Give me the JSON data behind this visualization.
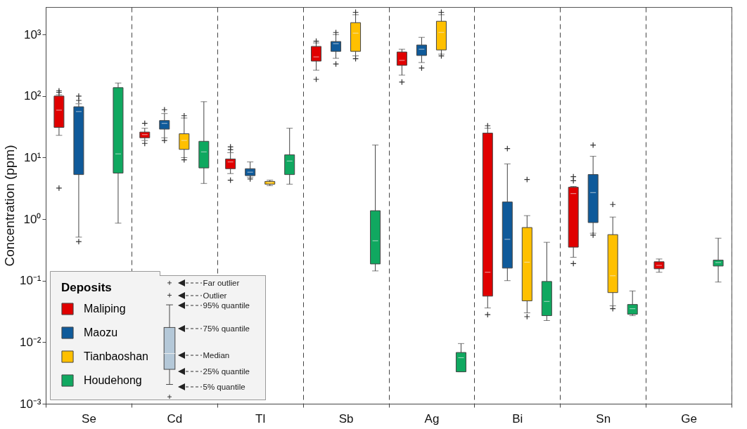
{
  "chart_data": {
    "type": "box",
    "ylabel": "Concentration (ppm)",
    "legend_title": "Deposits",
    "legend": "bottom left",
    "grid": "x",
    "log": true,
    "categories": [
      "Se",
      "Cd",
      "Tl",
      "Sb",
      "Ag",
      "Bi",
      "Sn",
      "Ge"
    ],
    "ylim": [
      0.001,
      2800
    ],
    "yticks": [
      {
        "value": 0.001,
        "label": "10⁻³"
      },
      {
        "value": 0.01,
        "label": "10⁻²"
      },
      {
        "value": 0.1,
        "label": "10⁻¹"
      },
      {
        "value": 1,
        "label": "10⁰"
      },
      {
        "value": 10,
        "label": "10¹"
      },
      {
        "value": 100,
        "label": "10²"
      },
      {
        "value": 1000,
        "label": "10³"
      }
    ],
    "annotations": [
      "Far  outlier",
      "Outlier",
      "95% quantile",
      "75% quantile",
      "Median",
      "25% quantile",
      "5% quantile"
    ],
    "series": [
      {
        "name": "Maliping",
        "color": "#e00000",
        "boxes": [
          {
            "low": 23,
            "q1": 31,
            "median": 59,
            "q3": 100,
            "high": 105,
            "outliers": [
              115,
              122,
              3.2
            ]
          },
          {
            "low": 19,
            "q1": 21,
            "median": 23.6,
            "q3": 26,
            "high": 30,
            "outliers": [
              36,
              17
            ]
          },
          {
            "low": 5.5,
            "q1": 6.6,
            "median": 8.5,
            "q3": 9.5,
            "high": 12,
            "outliers": [
              13.5,
              15,
              4.3
            ]
          },
          {
            "low": 263,
            "q1": 370,
            "median": 433,
            "q3": 641,
            "high": 731,
            "outliers": [
              780,
              187
            ]
          },
          {
            "low": 219,
            "q1": 316,
            "median": 380,
            "q3": 520,
            "high": 577,
            "outliers": [
              169
            ]
          },
          {
            "low": 0.036,
            "q1": 0.056,
            "median": 0.137,
            "q3": 25,
            "high": 30,
            "outliers": [
              33,
              0.028
            ]
          },
          {
            "low": 0.24,
            "q1": 0.35,
            "median": 2.6,
            "q3": 3.3,
            "high": 3.4,
            "outliers": [
              4.2,
              4.9,
              0.19
            ]
          },
          {
            "low": 0.137,
            "q1": 0.156,
            "median": 0.177,
            "q3": 0.203,
            "high": 0.225
          }
        ]
      },
      {
        "name": "Maozu",
        "color": "#0f5a9a",
        "boxes": [
          {
            "low": 0.51,
            "q1": 5.3,
            "median": 56,
            "q3": 67,
            "high": 75,
            "outliers": [
              85,
              100,
              0.43
            ]
          },
          {
            "low": 21,
            "q1": 29,
            "median": 36,
            "q3": 40,
            "high": 52,
            "outliers": [
              60,
              19
            ]
          },
          {
            "low": 4.8,
            "q1": 5.1,
            "median": 5.8,
            "q3": 6.6,
            "high": 8.5,
            "outliers": [
              4.5
            ]
          },
          {
            "low": 411,
            "q1": 533,
            "median": 711,
            "q3": 770,
            "high": 1000,
            "outliers": [
              1080,
              333
            ]
          },
          {
            "low": 351,
            "q1": 457,
            "median": 577,
            "q3": 676,
            "high": 900,
            "outliers": [
              285
            ]
          },
          {
            "low": 0.1,
            "q1": 0.16,
            "median": 0.47,
            "q3": 1.9,
            "high": 7.9,
            "outliers": [
              14
            ]
          },
          {
            "low": 0.59,
            "q1": 0.88,
            "median": 2.7,
            "q3": 5.3,
            "high": 10.5,
            "outliers": [
              16,
              0.55
            ]
          },
          null
        ]
      },
      {
        "name": "Tianbaoshan",
        "color": "#ffc000",
        "boxes": [
          null,
          {
            "low": 10,
            "q1": 13.6,
            "median": 19,
            "q3": 24.4,
            "high": 44,
            "outliers": [
              48,
              9.2
            ]
          },
          {
            "low": 3.5,
            "q1": 3.7,
            "median": 3.9,
            "q3": 4.1,
            "high": 4.3
          },
          {
            "low": 450,
            "q1": 533,
            "median": 1054,
            "q3": 1560,
            "high": 2100,
            "outliers": [
              2300,
              405
            ]
          },
          {
            "low": 480,
            "q1": 562,
            "median": 1082,
            "q3": 1645,
            "high": 2100,
            "outliers": [
              2300,
              450
            ]
          },
          {
            "low": 0.03,
            "q1": 0.047,
            "median": 0.2,
            "q3": 0.73,
            "high": 1.14,
            "outliers": [
              4.4,
              0.026
            ]
          },
          {
            "low": 0.039,
            "q1": 0.064,
            "median": 0.12,
            "q3": 0.56,
            "high": 1.08,
            "outliers": [
              1.73,
              0.035
            ]
          },
          null
        ]
      },
      {
        "name": "Houdehong",
        "color": "#10a860",
        "boxes": [
          {
            "low": 0.86,
            "q1": 5.6,
            "median": 11.5,
            "q3": 137,
            "high": 163
          },
          {
            "low": 3.8,
            "q1": 6.8,
            "median": 12.4,
            "q3": 18.4,
            "high": 81
          },
          {
            "low": 3.7,
            "q1": 5.3,
            "median": 8.8,
            "q3": 11.1,
            "high": 30
          },
          {
            "low": 0.144,
            "q1": 0.187,
            "median": 0.445,
            "q3": 1.37,
            "high": 16
          },
          {
            "low": 0.0033,
            "q1": 0.0033,
            "median": 0.0056,
            "q3": 0.0068,
            "high": 0.0095
          },
          {
            "low": 0.0225,
            "q1": 0.027,
            "median": 0.046,
            "q3": 0.097,
            "high": 0.42
          },
          {
            "low": 0.027,
            "q1": 0.0285,
            "median": 0.035,
            "q3": 0.041,
            "high": 0.068
          },
          {
            "low": 0.095,
            "q1": 0.173,
            "median": 0.197,
            "q3": 0.216,
            "high": 0.49
          }
        ]
      }
    ]
  }
}
